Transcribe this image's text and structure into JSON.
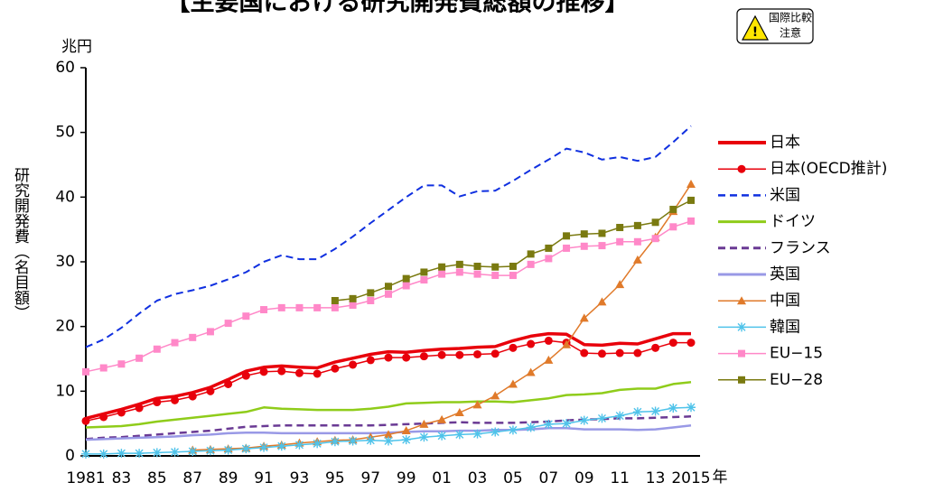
{
  "chart_data": {
    "type": "line",
    "title": "【主要国における研究開発費総額の推移】",
    "badge": [
      "国際比較",
      "注意"
    ],
    "y_unit": "兆円",
    "y_label": "研究開発費（名目額）",
    "x_unit": "年",
    "categories": [
      "1981",
      null,
      "83",
      null,
      "85",
      null,
      "87",
      null,
      "89",
      null,
      "91",
      null,
      "93",
      null,
      "95",
      null,
      "97",
      null,
      "99",
      null,
      "01",
      null,
      "03",
      null,
      "05",
      null,
      "07",
      null,
      "09",
      null,
      "11",
      null,
      "13",
      null,
      "2015"
    ],
    "ylim": [
      0,
      60
    ],
    "yticks": [
      0,
      10,
      20,
      30,
      40,
      50,
      60
    ],
    "series": [
      {
        "name": "日本",
        "color": "#e8000b",
        "width": 3.5,
        "dash": false,
        "marker": null,
        "values": [
          5.8,
          6.5,
          7.2,
          8.0,
          8.9,
          9.2,
          9.8,
          10.6,
          11.8,
          13.1,
          13.7,
          13.9,
          13.7,
          13.6,
          14.5,
          15.1,
          15.7,
          16.1,
          16.0,
          16.3,
          16.5,
          16.6,
          16.8,
          16.9,
          17.8,
          18.5,
          18.9,
          18.8,
          17.2,
          17.1,
          17.4,
          17.3,
          18.1,
          18.9,
          18.9
        ]
      },
      {
        "name": "日本(OECD推計)",
        "color": "#e8000b",
        "width": 1.5,
        "dash": false,
        "marker": "circle",
        "values": [
          5.4,
          6.0,
          6.7,
          7.4,
          8.3,
          8.6,
          9.2,
          10.0,
          11.1,
          12.4,
          13.0,
          13.1,
          12.8,
          12.7,
          13.5,
          14.1,
          14.8,
          15.2,
          15.2,
          15.4,
          15.6,
          15.6,
          15.7,
          15.8,
          16.7,
          17.3,
          17.8,
          17.5,
          15.9,
          15.8,
          15.9,
          15.9,
          16.7,
          17.5,
          17.5
        ]
      },
      {
        "name": "米国",
        "color": "#1030e0",
        "width": 2,
        "dash": true,
        "marker": null,
        "values": [
          16.8,
          18.0,
          19.8,
          22.0,
          24.0,
          25.0,
          25.6,
          26.3,
          27.3,
          28.4,
          30.0,
          31.0,
          30.4,
          30.4,
          32.0,
          33.9,
          36.0,
          38.0,
          40.0,
          41.8,
          41.8,
          40.1,
          40.9,
          41.0,
          42.5,
          44.2,
          45.8,
          47.5,
          46.9,
          45.8,
          46.2,
          45.6,
          46.2,
          48.5,
          51.0
        ]
      },
      {
        "name": "ドイツ",
        "color": "#8fcc1a",
        "width": 2.5,
        "dash": false,
        "marker": null,
        "values": [
          4.4,
          4.5,
          4.6,
          4.9,
          5.3,
          5.6,
          5.9,
          6.2,
          6.5,
          6.8,
          7.5,
          7.3,
          7.2,
          7.1,
          7.1,
          7.1,
          7.3,
          7.6,
          8.1,
          8.2,
          8.3,
          8.3,
          8.4,
          8.4,
          8.3,
          8.6,
          8.9,
          9.4,
          9.5,
          9.7,
          10.2,
          10.4,
          10.4,
          11.1,
          11.4
        ]
      },
      {
        "name": "フランス",
        "color": "#6a3a94",
        "width": 2.5,
        "dash": true,
        "marker": null,
        "values": [
          2.6,
          2.8,
          2.9,
          3.1,
          3.3,
          3.5,
          3.7,
          3.9,
          4.2,
          4.5,
          4.6,
          4.7,
          4.7,
          4.7,
          4.7,
          4.7,
          4.7,
          4.8,
          4.9,
          5.0,
          5.1,
          5.2,
          5.1,
          5.1,
          5.1,
          5.2,
          5.3,
          5.5,
          5.6,
          5.7,
          5.8,
          5.8,
          5.9,
          6.0,
          6.1
        ]
      },
      {
        "name": "英国",
        "color": "#9999e6",
        "width": 2.5,
        "dash": false,
        "marker": null,
        "values": [
          2.5,
          2.6,
          2.7,
          2.8,
          2.9,
          3.0,
          3.2,
          3.3,
          3.5,
          3.6,
          3.6,
          3.5,
          3.5,
          3.5,
          3.5,
          3.5,
          3.5,
          3.6,
          3.7,
          3.8,
          3.8,
          3.9,
          3.9,
          4.0,
          4.0,
          4.1,
          4.3,
          4.3,
          4.1,
          4.1,
          4.1,
          4.0,
          4.1,
          4.4,
          4.7
        ]
      },
      {
        "name": "中国",
        "color": "#e07a2a",
        "width": 1.5,
        "dash": false,
        "marker": "triangle",
        "values": [
          null,
          null,
          null,
          null,
          null,
          null,
          0.9,
          1.0,
          1.1,
          1.2,
          1.5,
          1.7,
          2.0,
          2.2,
          2.4,
          2.5,
          2.9,
          3.3,
          3.9,
          4.9,
          5.6,
          6.7,
          7.9,
          9.3,
          11.1,
          12.9,
          14.8,
          17.2,
          21.3,
          23.8,
          26.5,
          30.3,
          33.8,
          37.8,
          42.0
        ]
      },
      {
        "name": "韓国",
        "color": "#4fc3ea",
        "width": 1.5,
        "dash": false,
        "marker": "star",
        "values": [
          0.3,
          0.3,
          0.4,
          0.4,
          0.5,
          0.6,
          0.7,
          0.8,
          0.9,
          1.1,
          1.3,
          1.5,
          1.7,
          1.9,
          2.2,
          2.3,
          2.4,
          2.3,
          2.5,
          2.9,
          3.1,
          3.3,
          3.4,
          3.7,
          4.0,
          4.4,
          4.9,
          5.0,
          5.5,
          5.8,
          6.2,
          6.8,
          6.9,
          7.4,
          7.5
        ]
      },
      {
        "name": "EU−15",
        "color": "#ff88c8",
        "width": 1.5,
        "dash": false,
        "marker": "square",
        "values": [
          13.0,
          13.6,
          14.2,
          15.1,
          16.5,
          17.5,
          18.3,
          19.2,
          20.5,
          21.6,
          22.6,
          22.9,
          22.9,
          22.9,
          22.9,
          23.3,
          24.0,
          25.0,
          26.3,
          27.2,
          28.1,
          28.4,
          28.1,
          27.9,
          27.9,
          29.6,
          30.5,
          32.1,
          32.4,
          32.5,
          33.1,
          33.1,
          33.6,
          35.4,
          36.3
        ]
      },
      {
        "name": "EU−28",
        "color": "#7a7a10",
        "width": 1.5,
        "dash": false,
        "marker": "square",
        "values": [
          null,
          null,
          null,
          null,
          null,
          null,
          null,
          null,
          null,
          null,
          null,
          null,
          null,
          null,
          24.0,
          24.3,
          25.2,
          26.2,
          27.4,
          28.4,
          29.2,
          29.6,
          29.3,
          29.2,
          29.3,
          31.2,
          32.1,
          34.0,
          34.3,
          34.4,
          35.3,
          35.6,
          36.1,
          38.1,
          39.5
        ]
      }
    ]
  }
}
